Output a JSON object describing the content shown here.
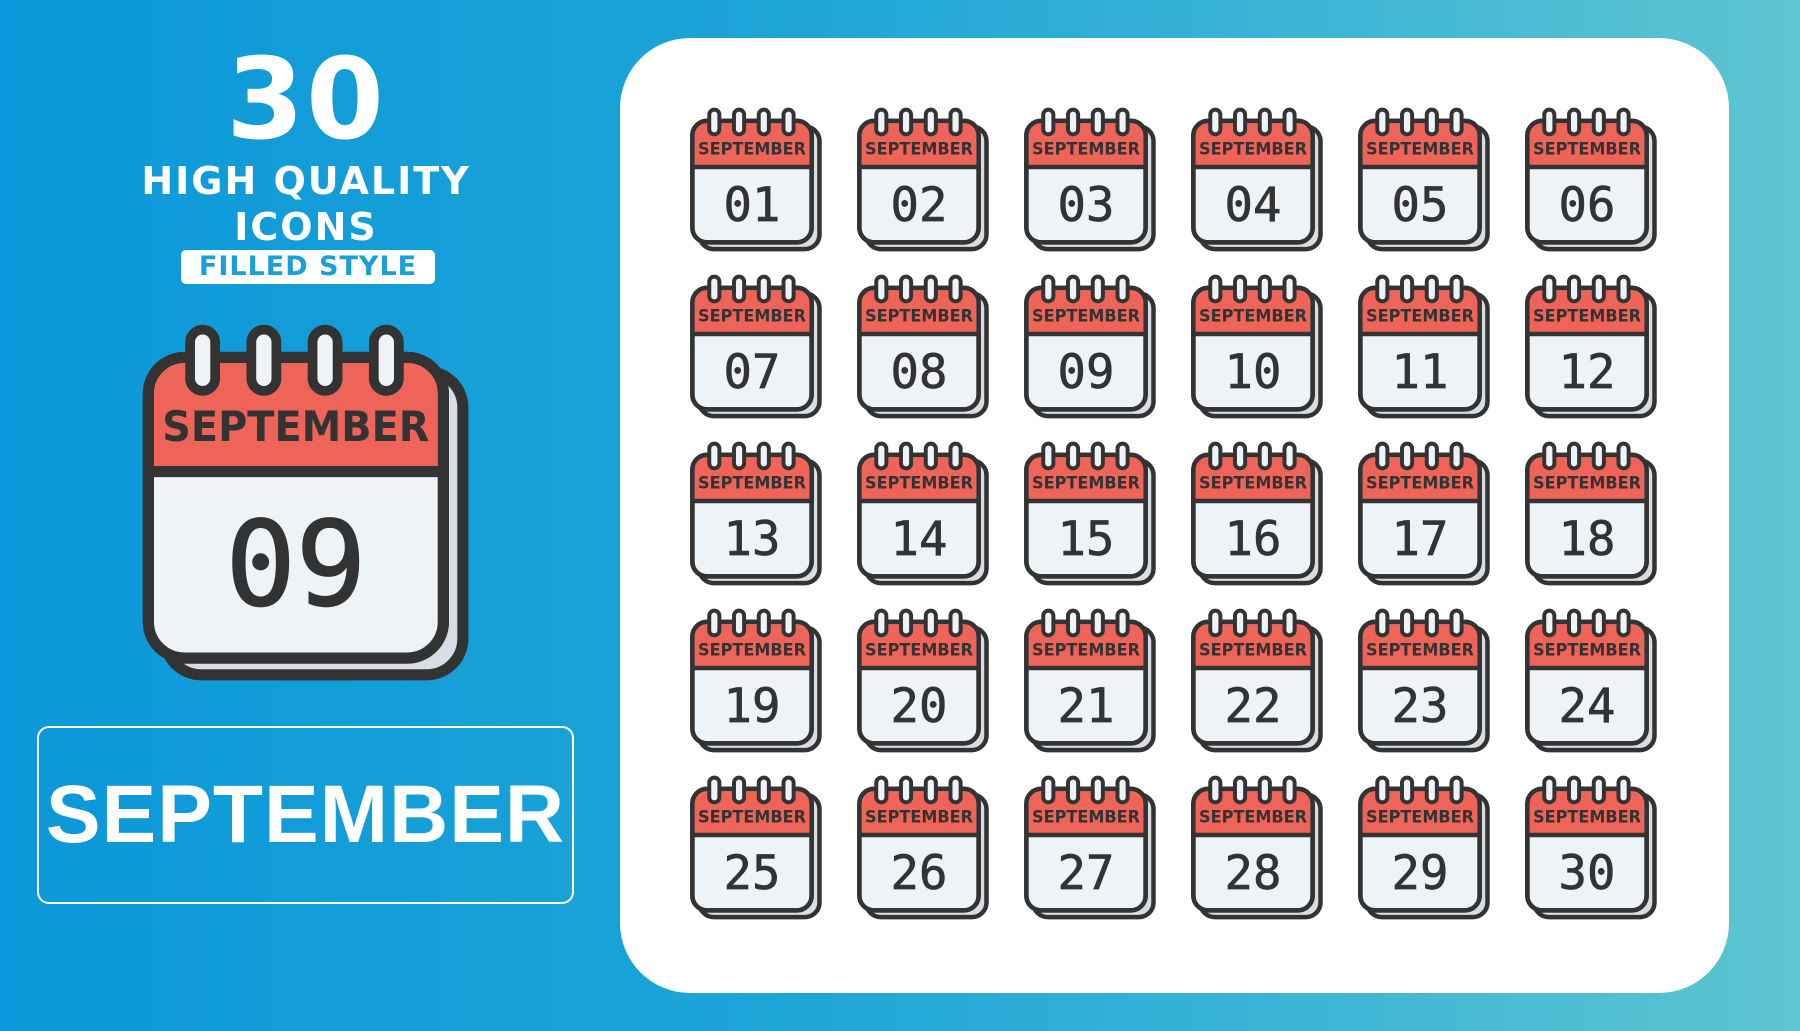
{
  "header": {
    "count": "30",
    "subtitle_line1": "HIGH QUALITY",
    "subtitle_line2": "ICONS",
    "style_badge": "FILLED STYLE"
  },
  "hero_icon": {
    "month": "SEPTEMBER",
    "day": "09"
  },
  "month_label": "SEPTEMBER",
  "colors": {
    "header_red": "#ef6459",
    "page": "#eef3f7",
    "outline": "#333333",
    "shadow_page": "#d7dde2"
  },
  "icons": {
    "month": "SEPTEMBER",
    "days": [
      "01",
      "02",
      "03",
      "04",
      "05",
      "06",
      "07",
      "08",
      "09",
      "10",
      "11",
      "12",
      "13",
      "14",
      "15",
      "16",
      "17",
      "18",
      "19",
      "20",
      "21",
      "22",
      "23",
      "24",
      "25",
      "26",
      "27",
      "28",
      "29",
      "30"
    ]
  }
}
